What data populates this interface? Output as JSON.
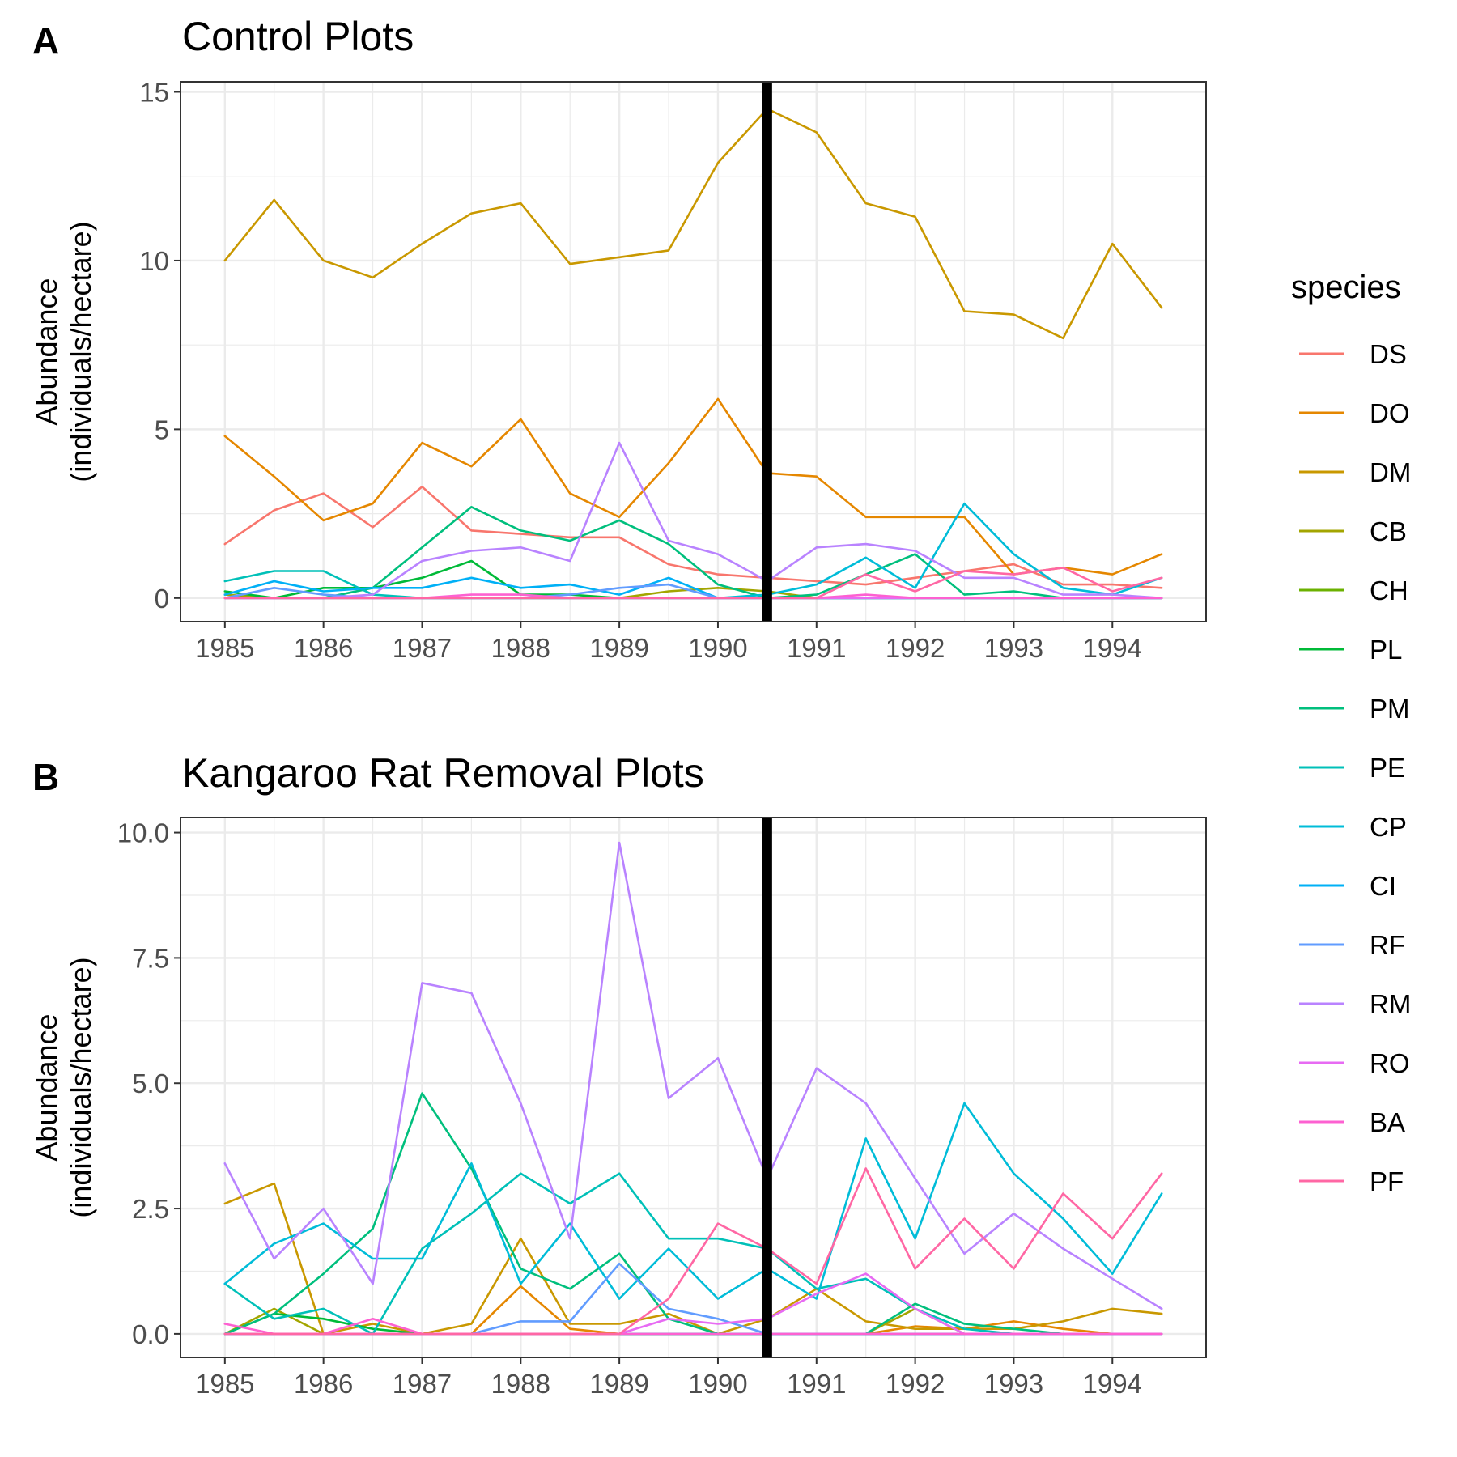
{
  "chart_data": [
    {
      "panel_letter": "A",
      "title": "Control Plots",
      "type": "line",
      "ylabel_lines": [
        "Abundance",
        "(individuals/hectare)"
      ],
      "xlabel": "",
      "x": [
        1985,
        1985.5,
        1986,
        1986.5,
        1987,
        1987.5,
        1988,
        1988.5,
        1989,
        1989.5,
        1990,
        1990.5,
        1991,
        1991.5,
        1992,
        1992.5,
        1993,
        1993.5,
        1994,
        1994.5
      ],
      "xticks": [
        1985,
        1986,
        1987,
        1988,
        1989,
        1990,
        1991,
        1992,
        1993,
        1994
      ],
      "xtick_labels": [
        "1985",
        "1986",
        "1987",
        "1988",
        "1989",
        "1990",
        "1991",
        "1992",
        "1993",
        "1994"
      ],
      "xlim": [
        1984.55,
        1994.95
      ],
      "yticks": [
        0,
        5,
        10,
        15
      ],
      "ytick_labels": [
        "0",
        "5",
        "10",
        "15"
      ],
      "ylim": [
        -0.7,
        15.3
      ],
      "vline": 1990.5,
      "grid": true,
      "series": [
        {
          "name": "DS",
          "color": "#F8766D",
          "values": [
            1.6,
            2.6,
            3.1,
            2.1,
            3.3,
            2.0,
            1.9,
            1.8,
            1.8,
            1.0,
            0.7,
            0.6,
            0.5,
            0.4,
            0.6,
            0.8,
            1.0,
            0.4,
            0.4,
            0.3
          ]
        },
        {
          "name": "DO",
          "color": "#E58700",
          "values": [
            4.8,
            3.6,
            2.3,
            2.8,
            4.6,
            3.9,
            5.3,
            3.1,
            2.4,
            4.0,
            5.9,
            3.7,
            3.6,
            2.4,
            2.4,
            2.4,
            0.7,
            0.9,
            0.7,
            1.3
          ]
        },
        {
          "name": "DM",
          "color": "#C99800",
          "values": [
            10.0,
            11.8,
            10.0,
            9.5,
            10.5,
            11.4,
            11.7,
            9.9,
            10.1,
            10.3,
            12.9,
            14.5,
            13.8,
            11.7,
            11.3,
            8.5,
            8.4,
            7.7,
            10.5,
            8.6
          ]
        },
        {
          "name": "CB",
          "color": "#A3A500",
          "values": [
            0.1,
            0.0,
            0.0,
            0.0,
            0.0,
            0.0,
            0.0,
            0.0,
            0.0,
            0.2,
            0.3,
            0.2,
            0.0,
            0.0,
            0.0,
            0.0,
            0.0,
            0.0,
            0.0,
            0.0
          ]
        },
        {
          "name": "CH",
          "color": "#6BB100",
          "values": [
            0.0,
            0.0,
            0.0,
            0.0,
            0.0,
            0.0,
            0.0,
            0.0,
            0.0,
            0.0,
            0.0,
            0.0,
            0.0,
            0.0,
            0.0,
            0.0,
            0.0,
            0.0,
            0.0,
            0.0
          ]
        },
        {
          "name": "PL",
          "color": "#00BA38",
          "values": [
            0.2,
            0.0,
            0.3,
            0.3,
            0.6,
            1.1,
            0.1,
            0.1,
            0.0,
            0.0,
            0.0,
            0.0,
            0.0,
            0.0,
            0.0,
            0.0,
            0.0,
            0.0,
            0.0,
            0.0
          ]
        },
        {
          "name": "PM",
          "color": "#00BF7D",
          "values": [
            0.0,
            0.0,
            0.0,
            0.3,
            1.5,
            2.7,
            2.0,
            1.7,
            2.3,
            1.6,
            0.4,
            0.0,
            0.1,
            0.7,
            1.3,
            0.1,
            0.2,
            0.0,
            0.0,
            0.0
          ]
        },
        {
          "name": "PE",
          "color": "#00C0B8",
          "values": [
            0.5,
            0.8,
            0.8,
            0.1,
            0.0,
            0.0,
            0.0,
            0.0,
            0.0,
            0.0,
            0.0,
            0.0,
            0.0,
            0.0,
            0.0,
            0.0,
            0.0,
            0.0,
            0.0,
            0.0
          ]
        },
        {
          "name": "CP",
          "color": "#00BCD8",
          "values": [
            0.0,
            0.0,
            0.0,
            0.0,
            0.0,
            0.0,
            0.0,
            0.0,
            0.0,
            0.0,
            0.0,
            0.1,
            0.4,
            1.2,
            0.3,
            2.8,
            1.3,
            0.3,
            0.1,
            0.6
          ]
        },
        {
          "name": "CI",
          "color": "#00B0F6",
          "values": [
            0.1,
            0.5,
            0.2,
            0.3,
            0.3,
            0.6,
            0.3,
            0.4,
            0.1,
            0.6,
            0.0,
            0.0,
            0.0,
            0.0,
            0.0,
            0.0,
            0.0,
            0.0,
            0.0,
            0.0
          ]
        },
        {
          "name": "RF",
          "color": "#619CFF",
          "values": [
            0.0,
            0.3,
            0.1,
            0.0,
            0.0,
            0.0,
            0.0,
            0.1,
            0.3,
            0.4,
            0.0,
            0.0,
            0.0,
            0.0,
            0.0,
            0.0,
            0.0,
            0.0,
            0.0,
            0.0
          ]
        },
        {
          "name": "RM",
          "color": "#B983FF",
          "values": [
            0.0,
            0.0,
            0.0,
            0.1,
            1.1,
            1.4,
            1.5,
            1.1,
            4.6,
            1.7,
            1.3,
            0.5,
            1.5,
            1.6,
            1.4,
            0.6,
            0.6,
            0.1,
            0.1,
            0.0
          ]
        },
        {
          "name": "RO",
          "color": "#E76BF3",
          "values": [
            0.0,
            0.0,
            0.0,
            0.0,
            0.0,
            0.0,
            0.0,
            0.0,
            0.0,
            0.0,
            0.0,
            0.0,
            0.0,
            0.0,
            0.0,
            0.0,
            0.0,
            0.0,
            0.0,
            0.0
          ]
        },
        {
          "name": "BA",
          "color": "#FD61D1",
          "values": [
            0.0,
            0.0,
            0.0,
            0.0,
            0.0,
            0.1,
            0.1,
            0.0,
            0.0,
            0.0,
            0.0,
            0.0,
            0.0,
            0.1,
            0.0,
            0.0,
            0.0,
            0.0,
            0.0,
            0.0
          ]
        },
        {
          "name": "PF",
          "color": "#FF67A4",
          "values": [
            0.0,
            0.0,
            0.0,
            0.0,
            0.0,
            0.0,
            0.0,
            0.0,
            0.0,
            0.0,
            0.0,
            0.0,
            0.0,
            0.7,
            0.2,
            0.8,
            0.7,
            0.9,
            0.2,
            0.6
          ]
        }
      ]
    },
    {
      "panel_letter": "B",
      "title": "Kangaroo Rat Removal Plots",
      "type": "line",
      "ylabel_lines": [
        "Abundance",
        "(individuals/hectare)"
      ],
      "xlabel": "",
      "x": [
        1985,
        1985.5,
        1986,
        1986.5,
        1987,
        1987.5,
        1988,
        1988.5,
        1989,
        1989.5,
        1990,
        1990.5,
        1991,
        1991.5,
        1992,
        1992.5,
        1993,
        1993.5,
        1994,
        1994.5
      ],
      "xticks": [
        1985,
        1986,
        1987,
        1988,
        1989,
        1990,
        1991,
        1992,
        1993,
        1994
      ],
      "xtick_labels": [
        "1985",
        "1986",
        "1987",
        "1988",
        "1989",
        "1990",
        "1991",
        "1992",
        "1993",
        "1994"
      ],
      "xlim": [
        1984.55,
        1994.95
      ],
      "yticks": [
        0,
        2.5,
        5,
        7.5,
        10
      ],
      "ytick_labels": [
        "0.0",
        "2.5",
        "5.0",
        "7.5",
        "10.0"
      ],
      "ylim": [
        -0.47,
        10.3
      ],
      "vline": 1990.5,
      "grid": true,
      "series": [
        {
          "name": "DS",
          "color": "#F8766D",
          "values": [
            0.0,
            0.0,
            0.0,
            0.0,
            0.0,
            0.0,
            0.0,
            0.0,
            0.0,
            0.0,
            0.0,
            0.0,
            0.0,
            0.0,
            0.0,
            0.0,
            0.0,
            0.0,
            0.0,
            0.0
          ]
        },
        {
          "name": "DO",
          "color": "#E58700",
          "values": [
            0.0,
            0.0,
            0.0,
            0.0,
            0.0,
            0.0,
            0.95,
            0.1,
            0.0,
            0.0,
            0.0,
            0.0,
            0.0,
            0.0,
            0.15,
            0.1,
            0.25,
            0.1,
            0.0,
            0.0
          ]
        },
        {
          "name": "DM",
          "color": "#C99800",
          "values": [
            2.6,
            3.0,
            0.0,
            0.2,
            0.0,
            0.2,
            1.9,
            0.2,
            0.2,
            0.4,
            0.0,
            0.3,
            0.9,
            0.25,
            0.1,
            0.1,
            0.1,
            0.25,
            0.5,
            0.4
          ]
        },
        {
          "name": "CB",
          "color": "#A3A500",
          "values": [
            0.0,
            0.5,
            0.0,
            0.0,
            0.0,
            0.0,
            0.0,
            0.0,
            0.0,
            0.0,
            0.0,
            0.0,
            0.0,
            0.0,
            0.5,
            0.0,
            0.0,
            0.0,
            0.0,
            0.0
          ]
        },
        {
          "name": "CH",
          "color": "#6BB100",
          "values": [
            0.0,
            0.0,
            0.0,
            0.0,
            0.0,
            0.0,
            0.0,
            0.0,
            0.0,
            0.0,
            0.0,
            0.0,
            0.0,
            0.0,
            0.0,
            0.0,
            0.0,
            0.0,
            0.0,
            0.0
          ]
        },
        {
          "name": "PL",
          "color": "#00BA38",
          "values": [
            0.0,
            0.4,
            0.3,
            0.1,
            0.0,
            0.0,
            0.0,
            0.0,
            0.0,
            0.0,
            0.0,
            0.0,
            0.0,
            0.0,
            0.0,
            0.0,
            0.0,
            0.0,
            0.0,
            0.0
          ]
        },
        {
          "name": "PM",
          "color": "#00BF7D",
          "values": [
            0.0,
            0.4,
            1.2,
            2.1,
            4.8,
            3.3,
            1.3,
            0.9,
            1.6,
            0.3,
            0.0,
            0.0,
            0.0,
            0.0,
            0.6,
            0.2,
            0.1,
            0.0,
            0.0,
            0.0
          ]
        },
        {
          "name": "PE",
          "color": "#00C0B8",
          "values": [
            1.0,
            0.3,
            0.5,
            0.0,
            1.7,
            2.4,
            3.2,
            2.6,
            3.2,
            1.9,
            1.9,
            1.7,
            0.9,
            1.1,
            0.5,
            0.1,
            0.0,
            0.0,
            0.0,
            0.0
          ]
        },
        {
          "name": "CP",
          "color": "#00BCD8",
          "values": [
            1.0,
            1.8,
            2.2,
            1.5,
            1.5,
            3.4,
            1.0,
            2.2,
            0.7,
            1.7,
            0.7,
            1.3,
            0.7,
            3.9,
            1.9,
            4.6,
            3.2,
            2.3,
            1.2,
            2.8
          ]
        },
        {
          "name": "CI",
          "color": "#00B0F6",
          "values": [
            0.0,
            0.0,
            0.0,
            0.0,
            0.0,
            0.0,
            0.0,
            0.0,
            0.0,
            0.0,
            0.0,
            0.0,
            0.0,
            0.0,
            0.0,
            0.0,
            0.0,
            0.0,
            0.0,
            0.0
          ]
        },
        {
          "name": "RF",
          "color": "#619CFF",
          "values": [
            0.0,
            0.0,
            0.0,
            0.0,
            0.0,
            0.0,
            0.25,
            0.25,
            1.4,
            0.5,
            0.3,
            0.0,
            0.0,
            0.0,
            0.0,
            0.0,
            0.0,
            0.0,
            0.0,
            0.0
          ]
        },
        {
          "name": "RM",
          "color": "#B983FF",
          "values": [
            3.4,
            1.5,
            2.5,
            1.0,
            7.0,
            6.8,
            4.6,
            1.9,
            9.8,
            4.7,
            5.5,
            3.1,
            5.3,
            4.6,
            3.1,
            1.6,
            2.4,
            1.7,
            1.1,
            0.5
          ]
        },
        {
          "name": "RO",
          "color": "#E76BF3",
          "values": [
            0.0,
            0.0,
            0.0,
            0.0,
            0.0,
            0.0,
            0.0,
            0.0,
            0.0,
            0.3,
            0.2,
            0.3,
            0.8,
            1.2,
            0.5,
            0.0,
            0.0,
            0.0,
            0.0,
            0.0
          ]
        },
        {
          "name": "BA",
          "color": "#FD61D1",
          "values": [
            0.2,
            0.0,
            0.0,
            0.3,
            0.0,
            0.0,
            0.0,
            0.0,
            0.0,
            0.0,
            0.0,
            0.0,
            0.0,
            0.0,
            0.0,
            0.0,
            0.0,
            0.0,
            0.0,
            0.0
          ]
        },
        {
          "name": "PF",
          "color": "#FF67A4",
          "values": [
            0.0,
            0.0,
            0.0,
            0.0,
            0.0,
            0.0,
            0.0,
            0.0,
            0.0,
            0.7,
            2.2,
            1.7,
            1.0,
            3.3,
            1.3,
            2.3,
            1.3,
            2.8,
            1.9,
            3.2
          ]
        }
      ]
    }
  ],
  "legend": {
    "title": "species",
    "position": "right",
    "items": [
      {
        "label": "DS",
        "color": "#F8766D"
      },
      {
        "label": "DO",
        "color": "#E58700"
      },
      {
        "label": "DM",
        "color": "#C99800"
      },
      {
        "label": "CB",
        "color": "#A3A500"
      },
      {
        "label": "CH",
        "color": "#6BB100"
      },
      {
        "label": "PL",
        "color": "#00BA38"
      },
      {
        "label": "PM",
        "color": "#00BF7D"
      },
      {
        "label": "PE",
        "color": "#00C0B8"
      },
      {
        "label": "CP",
        "color": "#00BCD8"
      },
      {
        "label": "CI",
        "color": "#00B0F6"
      },
      {
        "label": "RF",
        "color": "#619CFF"
      },
      {
        "label": "RM",
        "color": "#B983FF"
      },
      {
        "label": "RO",
        "color": "#E76BF3"
      },
      {
        "label": "BA",
        "color": "#FD61D1"
      },
      {
        "label": "PF",
        "color": "#FF67A4"
      }
    ]
  }
}
